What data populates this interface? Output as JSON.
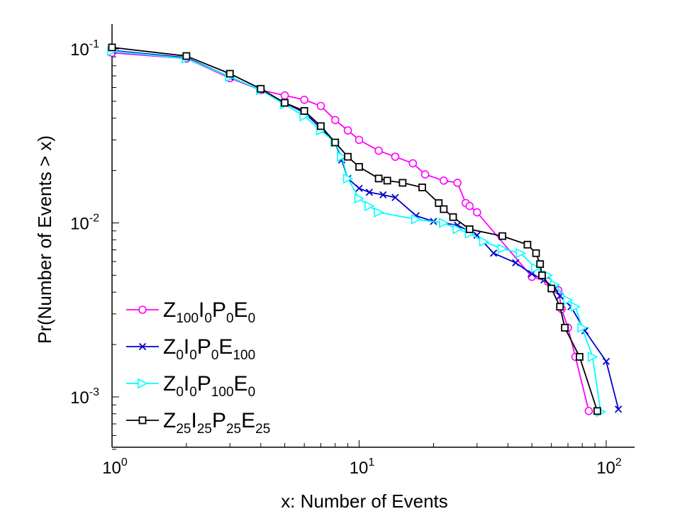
{
  "chart_data": {
    "type": "line",
    "xscale": "log",
    "yscale": "log",
    "xlabel": "x: Number of Events",
    "ylabel": "Pr(Number of Events > x)",
    "xlim": [
      1,
      150
    ],
    "ylim": [
      0.0005,
      0.12
    ],
    "xticks": [
      {
        "value": 1,
        "base": "10",
        "exp": "0"
      },
      {
        "value": 10,
        "base": "10",
        "exp": "1"
      },
      {
        "value": 100,
        "base": "10",
        "exp": "2"
      }
    ],
    "yticks": [
      {
        "value": 0.001,
        "base": "10",
        "exp": "-3"
      },
      {
        "value": 0.01,
        "base": "10",
        "exp": "-2"
      },
      {
        "value": 0.1,
        "base": "10",
        "exp": "-1"
      }
    ],
    "legend_position": "bottom-left",
    "series": [
      {
        "legend": [
          {
            "t": "Z"
          },
          {
            "t": "100",
            "sub": true
          },
          {
            "t": "I"
          },
          {
            "t": "0",
            "sub": true
          },
          {
            "t": "P"
          },
          {
            "t": "0",
            "sub": true
          },
          {
            "t": "E"
          },
          {
            "t": "0",
            "sub": true
          }
        ],
        "color": "#ff00ff",
        "marker": "circle",
        "points": [
          [
            1,
            0.095
          ],
          [
            2,
            0.088
          ],
          [
            3,
            0.068
          ],
          [
            4,
            0.058
          ],
          [
            5,
            0.054
          ],
          [
            6,
            0.051
          ],
          [
            7,
            0.047
          ],
          [
            8,
            0.039
          ],
          [
            9,
            0.034
          ],
          [
            10,
            0.03
          ],
          [
            12,
            0.026
          ],
          [
            14,
            0.024
          ],
          [
            16.5,
            0.022
          ],
          [
            18.5,
            0.019
          ],
          [
            22,
            0.0175
          ],
          [
            25,
            0.017
          ],
          [
            27,
            0.013
          ],
          [
            28,
            0.0125
          ],
          [
            30,
            0.0115
          ],
          [
            50,
            0.0049
          ],
          [
            58,
            0.0046
          ],
          [
            64,
            0.0041
          ],
          [
            66,
            0.0032
          ],
          [
            70,
            0.0025
          ],
          [
            75,
            0.0017
          ],
          [
            85,
            0.00083
          ]
        ]
      },
      {
        "legend": [
          {
            "t": "Z"
          },
          {
            "t": "0",
            "sub": true
          },
          {
            "t": "I"
          },
          {
            "t": "0",
            "sub": true
          },
          {
            "t": "P"
          },
          {
            "t": "0",
            "sub": true
          },
          {
            "t": "E"
          },
          {
            "t": "100",
            "sub": true
          }
        ],
        "color": "#0000cc",
        "marker": "x",
        "points": [
          [
            1,
            0.098
          ],
          [
            2,
            0.089
          ],
          [
            3,
            0.069
          ],
          [
            4,
            0.058
          ],
          [
            5,
            0.049
          ],
          [
            6,
            0.043
          ],
          [
            7,
            0.035
          ],
          [
            8,
            0.029
          ],
          [
            8.5,
            0.023
          ],
          [
            9,
            0.018
          ],
          [
            10,
            0.0158
          ],
          [
            11,
            0.015
          ],
          [
            12.5,
            0.0145
          ],
          [
            14,
            0.014
          ],
          [
            17,
            0.011
          ],
          [
            20,
            0.0102
          ],
          [
            25,
            0.0097
          ],
          [
            30,
            0.0085
          ],
          [
            35,
            0.0067
          ],
          [
            43,
            0.0059
          ],
          [
            50,
            0.0051
          ],
          [
            56,
            0.0047
          ],
          [
            62,
            0.0042
          ],
          [
            65,
            0.0038
          ],
          [
            72,
            0.0033
          ],
          [
            82,
            0.0024
          ],
          [
            100,
            0.0016
          ],
          [
            112,
            0.00085
          ]
        ]
      },
      {
        "legend": [
          {
            "t": "Z"
          },
          {
            "t": "0",
            "sub": true
          },
          {
            "t": "I"
          },
          {
            "t": "0",
            "sub": true
          },
          {
            "t": "P"
          },
          {
            "t": "100",
            "sub": true
          },
          {
            "t": "E"
          },
          {
            "t": "0",
            "sub": true
          }
        ],
        "color": "#00ffff",
        "marker": "triangle-right",
        "points": [
          [
            1,
            0.097
          ],
          [
            2,
            0.088
          ],
          [
            3,
            0.069
          ],
          [
            4,
            0.058
          ],
          [
            5,
            0.048
          ],
          [
            6,
            0.041
          ],
          [
            7,
            0.034
          ],
          [
            8,
            0.029
          ],
          [
            8.5,
            0.024
          ],
          [
            9,
            0.018
          ],
          [
            10,
            0.0138
          ],
          [
            11,
            0.0125
          ],
          [
            12,
            0.0115
          ],
          [
            17,
            0.0105
          ],
          [
            22,
            0.01
          ],
          [
            25,
            0.0092
          ],
          [
            28,
            0.0087
          ],
          [
            32,
            0.0078
          ],
          [
            38,
            0.0071
          ],
          [
            45,
            0.0067
          ],
          [
            52,
            0.0055
          ],
          [
            58,
            0.005
          ],
          [
            62,
            0.0044
          ],
          [
            70,
            0.0036
          ],
          [
            75,
            0.0033
          ],
          [
            80,
            0.0025
          ],
          [
            88,
            0.0017
          ],
          [
            95,
            0.00082
          ]
        ]
      },
      {
        "legend": [
          {
            "t": "Z"
          },
          {
            "t": "25",
            "sub": true
          },
          {
            "t": "I"
          },
          {
            "t": "25",
            "sub": true
          },
          {
            "t": "P"
          },
          {
            "t": "25",
            "sub": true
          },
          {
            "t": "E"
          },
          {
            "t": "25",
            "sub": true
          }
        ],
        "color": "#000000",
        "marker": "square",
        "points": [
          [
            1,
            0.102
          ],
          [
            2,
            0.091
          ],
          [
            3,
            0.072
          ],
          [
            4,
            0.059
          ],
          [
            5,
            0.049
          ],
          [
            6,
            0.044
          ],
          [
            7,
            0.036
          ],
          [
            8,
            0.029
          ],
          [
            9,
            0.024
          ],
          [
            10,
            0.021
          ],
          [
            12,
            0.018
          ],
          [
            13,
            0.0175
          ],
          [
            15,
            0.017
          ],
          [
            18,
            0.016
          ],
          [
            21,
            0.013
          ],
          [
            22,
            0.012
          ],
          [
            24,
            0.0108
          ],
          [
            28,
            0.0092
          ],
          [
            38,
            0.0084
          ],
          [
            48,
            0.0075
          ],
          [
            52,
            0.0067
          ],
          [
            54,
            0.0058
          ],
          [
            55,
            0.005
          ],
          [
            60,
            0.0042
          ],
          [
            65,
            0.0033
          ],
          [
            68,
            0.0025
          ],
          [
            78,
            0.0017
          ],
          [
            92,
            0.00083
          ]
        ]
      }
    ]
  }
}
